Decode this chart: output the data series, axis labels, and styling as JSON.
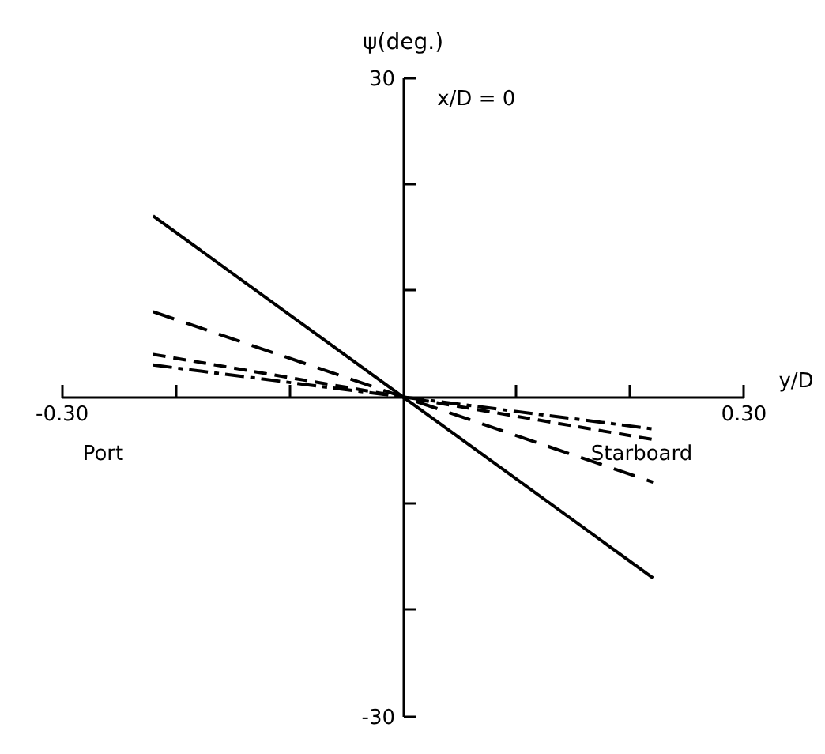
{
  "chart_data": {
    "type": "line",
    "xlabel": "y/D",
    "ylabel": "ψ(deg.)",
    "x": [
      -0.22,
      0.22
    ],
    "series": [
      {
        "color": "#000000",
        "values": [
          17,
          -17
        ],
        "line_style": "solid"
      },
      {
        "color": "#000000",
        "values": [
          8,
          -8
        ],
        "line_style": "dashed"
      },
      {
        "color": "#000000",
        "values": [
          4,
          -4
        ],
        "line_style": "dashed_short"
      },
      {
        "color": "#000000",
        "values": [
          3,
          -3
        ],
        "line_style": "dashdot"
      }
    ],
    "xlim": [
      -0.3,
      0.3
    ],
    "ylim": [
      -30,
      30
    ],
    "xticks": [
      {
        "value": -0.3,
        "label": "-0.30"
      },
      {
        "value": -0.2,
        "label": null
      },
      {
        "value": -0.1,
        "label": null
      },
      {
        "value": 0.1,
        "label": null
      },
      {
        "value": 0.2,
        "label": null
      },
      {
        "value": 0.3,
        "label": "0.30"
      }
    ],
    "yticks": [
      30,
      {
        "value": 20,
        "label": null
      },
      {
        "value": 10,
        "label": null
      },
      {
        "value": -10,
        "label": null
      },
      {
        "value": -20,
        "label": null
      },
      -30
    ],
    "grid": false,
    "marker": "none",
    "annotations": [
      "x/D = 0",
      "Port",
      "Starboard"
    ]
  }
}
